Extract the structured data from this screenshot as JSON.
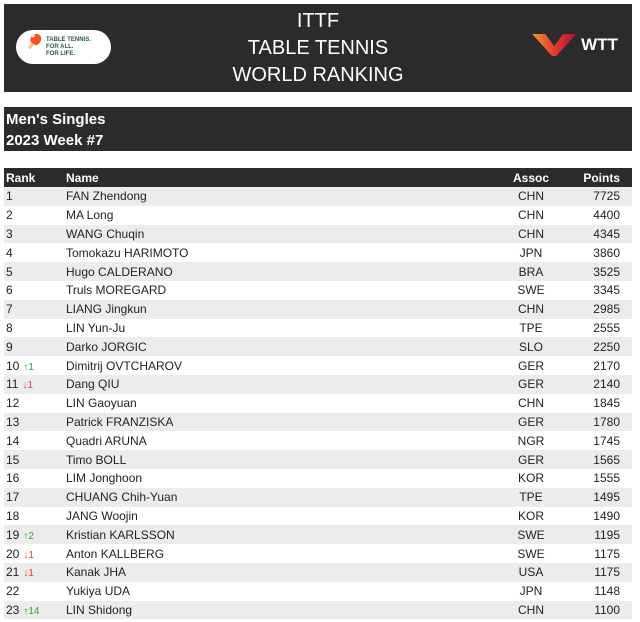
{
  "header": {
    "title_lines": [
      "ITTF",
      "TABLE TENNIS",
      "WORLD RANKING"
    ],
    "logo_left": "TABLE TENNIS. FOR ALL. FOR LIFE.",
    "logo_right": "WTT"
  },
  "subheader": {
    "category": "Men's Singles",
    "week": "2023 Week #7"
  },
  "table": {
    "columns": [
      "Rank",
      "Name",
      "Assoc",
      "Points"
    ],
    "rows": [
      {
        "rank": "1",
        "change": "",
        "dir": "",
        "name": "FAN Zhendong",
        "assoc": "CHN",
        "points": "7725"
      },
      {
        "rank": "2",
        "change": "",
        "dir": "",
        "name": "MA Long",
        "assoc": "CHN",
        "points": "4400"
      },
      {
        "rank": "3",
        "change": "",
        "dir": "",
        "name": "WANG Chuqin",
        "assoc": "CHN",
        "points": "4345"
      },
      {
        "rank": "4",
        "change": "",
        "dir": "",
        "name": "Tomokazu HARIMOTO",
        "assoc": "JPN",
        "points": "3860"
      },
      {
        "rank": "5",
        "change": "",
        "dir": "",
        "name": "Hugo CALDERANO",
        "assoc": "BRA",
        "points": "3525"
      },
      {
        "rank": "6",
        "change": "",
        "dir": "",
        "name": "Truls MOREGARD",
        "assoc": "SWE",
        "points": "3345"
      },
      {
        "rank": "7",
        "change": "",
        "dir": "",
        "name": "LIANG Jingkun",
        "assoc": "CHN",
        "points": "2985"
      },
      {
        "rank": "8",
        "change": "",
        "dir": "",
        "name": "LIN Yun-Ju",
        "assoc": "TPE",
        "points": "2555"
      },
      {
        "rank": "9",
        "change": "",
        "dir": "",
        "name": "Darko JORGIC",
        "assoc": "SLO",
        "points": "2250"
      },
      {
        "rank": "10",
        "change": "↑1",
        "dir": "up",
        "name": "Dimitrij OVTCHAROV",
        "assoc": "GER",
        "points": "2170"
      },
      {
        "rank": "11",
        "change": "↓1",
        "dir": "dn",
        "name": "Dang QIU",
        "assoc": "GER",
        "points": "2140"
      },
      {
        "rank": "12",
        "change": "",
        "dir": "",
        "name": "LIN Gaoyuan",
        "assoc": "CHN",
        "points": "1845"
      },
      {
        "rank": "13",
        "change": "",
        "dir": "",
        "name": "Patrick FRANZISKA",
        "assoc": "GER",
        "points": "1780"
      },
      {
        "rank": "14",
        "change": "",
        "dir": "",
        "name": "Quadri ARUNA",
        "assoc": "NGR",
        "points": "1745"
      },
      {
        "rank": "15",
        "change": "",
        "dir": "",
        "name": "Timo BOLL",
        "assoc": "GER",
        "points": "1565"
      },
      {
        "rank": "16",
        "change": "",
        "dir": "",
        "name": "LIM Jonghoon",
        "assoc": "KOR",
        "points": "1555"
      },
      {
        "rank": "17",
        "change": "",
        "dir": "",
        "name": "CHUANG Chih-Yuan",
        "assoc": "TPE",
        "points": "1495"
      },
      {
        "rank": "18",
        "change": "",
        "dir": "",
        "name": "JANG Woojin",
        "assoc": "KOR",
        "points": "1490"
      },
      {
        "rank": "19",
        "change": "↑2",
        "dir": "up",
        "name": "Kristian KARLSSON",
        "assoc": "SWE",
        "points": "1195"
      },
      {
        "rank": "20",
        "change": "↓1",
        "dir": "dn",
        "name": "Anton KALLBERG",
        "assoc": "SWE",
        "points": "1175"
      },
      {
        "rank": "21",
        "change": "↓1",
        "dir": "dn",
        "name": "Kanak JHA",
        "assoc": "USA",
        "points": "1175"
      },
      {
        "rank": "22",
        "change": "",
        "dir": "",
        "name": "Yukiya UDA",
        "assoc": "JPN",
        "points": "1148"
      },
      {
        "rank": "23",
        "change": "↑14",
        "dir": "up",
        "name": "LIN Shidong",
        "assoc": "CHN",
        "points": "1100"
      }
    ]
  },
  "colors": {
    "header_bg": "#2b2b2b",
    "up": "#3a9a3a",
    "down": "#e04040",
    "stripe": "#ececec"
  }
}
